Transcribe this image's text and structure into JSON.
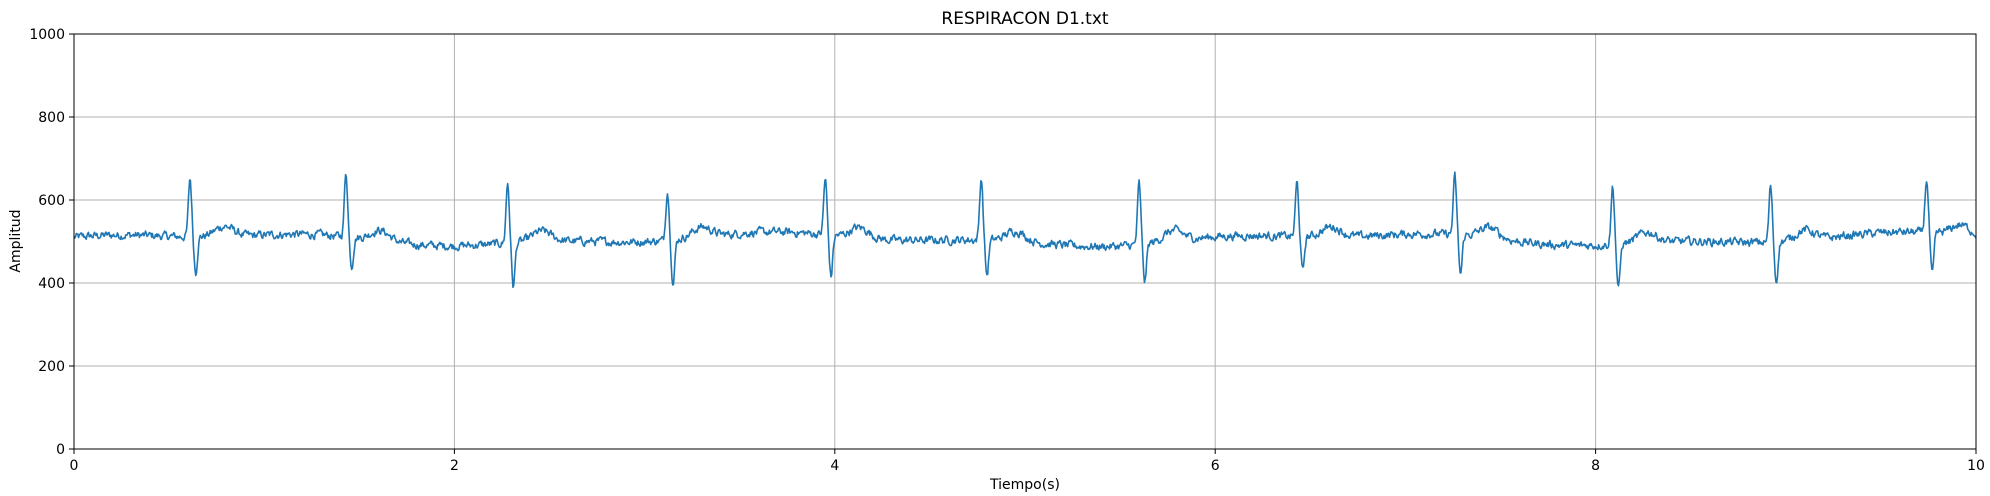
{
  "chart_data": {
    "type": "line",
    "title": "RESPIRACON D1.txt",
    "xlabel": "Tiempo(s)",
    "ylabel": "Amplitud",
    "xlim": [
      0,
      10
    ],
    "ylim": [
      0,
      1000
    ],
    "xticks": [
      0,
      2,
      4,
      6,
      8,
      10
    ],
    "yticks": [
      0,
      200,
      400,
      600,
      800,
      1000
    ],
    "grid": true,
    "series_color": "#1f77b4",
    "series": [
      {
        "baseline": 505,
        "noise_amplitude": 18,
        "peaks": [
          {
            "t": 0.61,
            "peak": 645,
            "trough": 430
          },
          {
            "t": 1.43,
            "peak": 660,
            "trough": 445
          },
          {
            "t": 2.28,
            "peak": 650,
            "trough": 410
          },
          {
            "t": 3.12,
            "peak": 625,
            "trough": 410
          },
          {
            "t": 3.95,
            "peak": 640,
            "trough": 415
          },
          {
            "t": 4.77,
            "peak": 655,
            "trough": 430
          },
          {
            "t": 5.6,
            "peak": 652,
            "trough": 425
          },
          {
            "t": 6.43,
            "peak": 635,
            "trough": 430
          },
          {
            "t": 7.26,
            "peak": 645,
            "trough": 420
          },
          {
            "t": 8.09,
            "peak": 645,
            "trough": 405
          },
          {
            "t": 8.92,
            "peak": 640,
            "trough": 418
          },
          {
            "t": 9.74,
            "peak": 635,
            "trough": 412
          }
        ]
      }
    ]
  }
}
